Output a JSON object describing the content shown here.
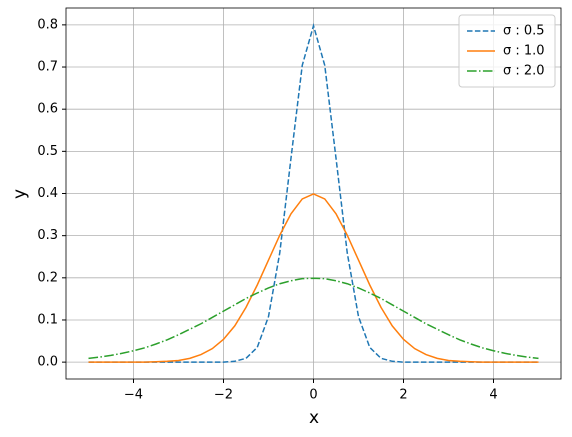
{
  "chart_data": {
    "type": "line",
    "xlabel": "x",
    "ylabel": "y",
    "x": [
      -5,
      -4.75,
      -4.5,
      -4.25,
      -4,
      -3.75,
      -3.5,
      -3.25,
      -3,
      -2.75,
      -2.5,
      -2.25,
      -2,
      -1.75,
      -1.5,
      -1.25,
      -1,
      -0.75,
      -0.5,
      -0.25,
      0,
      0.25,
      0.5,
      0.75,
      1,
      1.25,
      1.5,
      1.75,
      2,
      2.25,
      2.5,
      2.75,
      3,
      3.25,
      3.5,
      3.75,
      4,
      4.25,
      4.5,
      4.75,
      5
    ],
    "series": [
      {
        "name": "σ : 0.5",
        "color": "#1f77b4",
        "linestyle": "dashed",
        "values": [
          0,
          0,
          0,
          0,
          0,
          0,
          0,
          0,
          0,
          0,
          0,
          0,
          0,
          0.002,
          0.009,
          0.035,
          0.108,
          0.259,
          0.484,
          0.704,
          0.798,
          0.704,
          0.484,
          0.259,
          0.108,
          0.035,
          0.009,
          0.002,
          0,
          0,
          0,
          0,
          0,
          0,
          0,
          0,
          0,
          0,
          0,
          0,
          0
        ]
      },
      {
        "name": "σ : 1.0",
        "color": "#ff7f0e",
        "linestyle": "solid",
        "values": [
          0,
          0,
          0,
          0,
          0,
          0,
          0.001,
          0.002,
          0.004,
          0.009,
          0.018,
          0.032,
          0.054,
          0.086,
          0.13,
          0.183,
          0.242,
          0.301,
          0.352,
          0.387,
          0.399,
          0.387,
          0.352,
          0.301,
          0.242,
          0.183,
          0.13,
          0.086,
          0.054,
          0.032,
          0.018,
          0.009,
          0.004,
          0.002,
          0.001,
          0,
          0,
          0,
          0,
          0,
          0
        ]
      },
      {
        "name": "σ : 2.0",
        "color": "#2ca02c",
        "linestyle": "dashdot",
        "values": [
          0.009,
          0.012,
          0.016,
          0.021,
          0.027,
          0.034,
          0.043,
          0.053,
          0.065,
          0.078,
          0.091,
          0.106,
          0.121,
          0.136,
          0.151,
          0.164,
          0.176,
          0.186,
          0.193,
          0.198,
          0.199,
          0.198,
          0.193,
          0.186,
          0.176,
          0.164,
          0.151,
          0.136,
          0.121,
          0.106,
          0.091,
          0.078,
          0.065,
          0.053,
          0.043,
          0.034,
          0.027,
          0.021,
          0.016,
          0.012,
          0.009
        ]
      }
    ],
    "xlim": [
      -5.5,
      5.5
    ],
    "ylim": [
      -0.04,
      0.84
    ],
    "xticks": [
      {
        "value": -4,
        "label": "−4"
      },
      {
        "value": -2,
        "label": "−2"
      },
      0,
      2,
      4
    ],
    "yticks": [
      {
        "value": 0,
        "label": "0.0"
      },
      0.1,
      0.2,
      0.3,
      0.4,
      0.5,
      0.6,
      0.7,
      0.8
    ],
    "grid": true,
    "legend": "upper right"
  }
}
